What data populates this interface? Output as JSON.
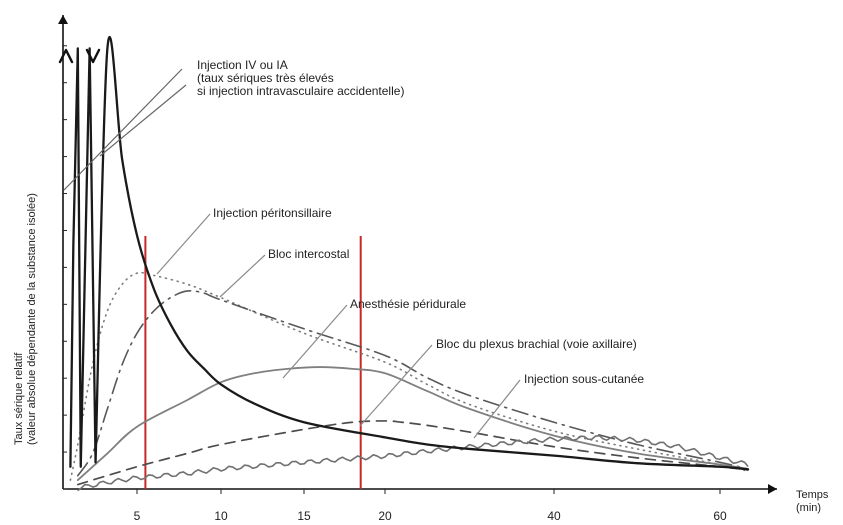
{
  "chart_data": {
    "type": "line",
    "title": "",
    "xlabel": "Temps\n(min)",
    "ylabel": "Taux sérique relatif\n(valeur absolue dépendante de la substance isolée)",
    "xlim": [
      0,
      64
    ],
    "ylim": [
      0,
      100
    ],
    "grid": false,
    "legend": "none",
    "x_ticks": [
      5,
      10,
      15,
      20,
      40,
      60
    ],
    "y_ticks": [
      0,
      8.3,
      16.6,
      24.9,
      33.2,
      41.5,
      49.8,
      58.1,
      66.4,
      74.7,
      83,
      91.3,
      99.6
    ],
    "red_vertical_lines_x": [
      5.5,
      18.5
    ],
    "annotations": [
      {
        "text": "Injection IV ou IA",
        "series": "iv_spike"
      },
      {
        "text": "(taux sériques très élevés",
        "series": "iv_spike"
      },
      {
        "text": "si injection intravasculaire accidentelle)",
        "series": "iv_spike"
      },
      {
        "text": "Injection péritonsillaire",
        "series": "peritonsillar"
      },
      {
        "text": "Bloc intercostal",
        "series": "intercostal"
      },
      {
        "text": "Anesthésie péridurale",
        "series": "epidural"
      },
      {
        "text": "Bloc du plexus brachial (voie axillaire)",
        "series": "brachial"
      },
      {
        "text": "Injection sous-cutanée",
        "series": "subcutaneous"
      }
    ],
    "series": [
      {
        "key": "iv_spike",
        "color": "#1a1a1a",
        "values": [
          [
            0.5,
            5
          ],
          [
            0.7,
            55
          ],
          [
            1,
            99
          ],
          [
            1.2,
            5
          ],
          [
            1.8,
            99
          ],
          [
            2.2,
            6
          ],
          [
            3,
            99
          ],
          [
            4,
            74
          ],
          [
            5,
            57
          ],
          [
            6,
            45
          ],
          [
            7,
            37
          ],
          [
            8,
            31
          ],
          [
            9,
            27
          ],
          [
            10,
            23.5
          ],
          [
            12,
            19.2
          ],
          [
            15,
            15
          ],
          [
            20,
            11.6
          ],
          [
            25,
            10
          ],
          [
            30,
            9
          ],
          [
            40,
            7.5
          ],
          [
            50,
            5.8
          ],
          [
            60,
            5
          ],
          [
            64,
            4.4
          ]
        ]
      },
      {
        "key": "peritonsillar",
        "color": "#6b6b6b",
        "values": [
          [
            0.5,
            2
          ],
          [
            1,
            10
          ],
          [
            2,
            28
          ],
          [
            3,
            40
          ],
          [
            4,
            46
          ],
          [
            5,
            48.5
          ],
          [
            6,
            48
          ],
          [
            8,
            46
          ],
          [
            10,
            43
          ],
          [
            15,
            35
          ],
          [
            20,
            28.5
          ],
          [
            25,
            23.5
          ],
          [
            30,
            19
          ],
          [
            40,
            13
          ],
          [
            50,
            9
          ],
          [
            60,
            5.5
          ],
          [
            64,
            4
          ]
        ]
      },
      {
        "key": "intercostal",
        "color": "#5a5a5a",
        "values": [
          [
            1,
            3
          ],
          [
            2,
            8
          ],
          [
            3,
            18
          ],
          [
            4,
            28
          ],
          [
            5,
            35
          ],
          [
            6,
            40
          ],
          [
            7,
            43
          ],
          [
            8,
            44.5
          ],
          [
            9,
            44
          ],
          [
            10,
            42.5
          ],
          [
            15,
            36
          ],
          [
            20,
            30
          ],
          [
            25,
            25
          ],
          [
            30,
            21
          ],
          [
            40,
            15
          ],
          [
            50,
            10
          ],
          [
            60,
            6
          ],
          [
            64,
            4.5
          ]
        ]
      },
      {
        "key": "epidural",
        "color": "#7a7a7a",
        "values": [
          [
            1,
            2
          ],
          [
            3,
            8
          ],
          [
            5,
            14
          ],
          [
            8,
            20
          ],
          [
            10,
            24
          ],
          [
            12,
            26
          ],
          [
            14,
            27
          ],
          [
            16,
            27.4
          ],
          [
            18,
            27
          ],
          [
            20,
            26
          ],
          [
            25,
            22
          ],
          [
            30,
            18
          ],
          [
            40,
            12
          ],
          [
            50,
            8
          ],
          [
            60,
            5.5
          ],
          [
            64,
            4.5
          ]
        ]
      },
      {
        "key": "brachial",
        "color": "#4f4f4f",
        "values": [
          [
            1,
            1
          ],
          [
            5,
            5
          ],
          [
            8,
            8
          ],
          [
            10,
            10
          ],
          [
            15,
            13.4
          ],
          [
            18,
            15
          ],
          [
            20,
            15.3
          ],
          [
            22,
            15
          ],
          [
            25,
            14.3
          ],
          [
            30,
            12.8
          ],
          [
            40,
            9.5
          ],
          [
            50,
            7
          ],
          [
            60,
            5
          ],
          [
            64,
            4.3
          ]
        ]
      },
      {
        "key": "subcutaneous",
        "color": "#6e6e6e",
        "values": [
          [
            1,
            0.2
          ],
          [
            3,
            1.5
          ],
          [
            5,
            2.5
          ],
          [
            8,
            3.5
          ],
          [
            10,
            4.5
          ],
          [
            15,
            6
          ],
          [
            20,
            7.4
          ],
          [
            25,
            8.5
          ],
          [
            30,
            9.5
          ],
          [
            35,
            10.4
          ],
          [
            40,
            11.2
          ],
          [
            45,
            11.6
          ],
          [
            50,
            11
          ],
          [
            55,
            9.5
          ],
          [
            60,
            7
          ],
          [
            64,
            5.5
          ]
        ]
      }
    ]
  }
}
